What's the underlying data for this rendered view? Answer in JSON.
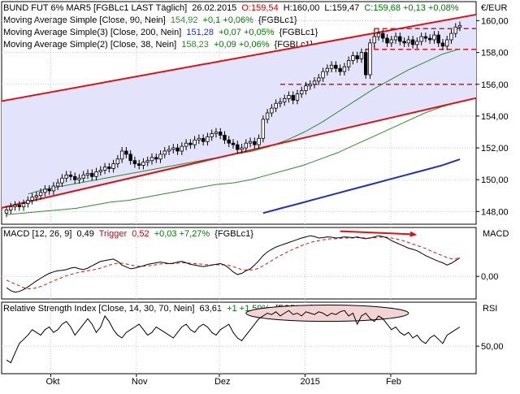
{
  "chart_data": {
    "type": "candlestick",
    "time_range": [
      "2014-09-15",
      "2015-02-26"
    ],
    "x_ticks": [
      {
        "label": "Okt",
        "date": "2014-10-01"
      },
      {
        "label": "Nov",
        "date": "2014-11-01"
      },
      {
        "label": "Dez",
        "date": "2014-12-01"
      },
      {
        "label": "2015",
        "date": "2015-01-01"
      },
      {
        "label": "Feb",
        "date": "2015-02-01"
      }
    ],
    "price_panel": {
      "header": {
        "instrument": "BUND FUT 6% MAR5 [FGBLc1 LAST Täglich]",
        "date": "26.02.2015",
        "open": "O:159,54",
        "high": "H:160,00",
        "low": "L:159,47",
        "close_change": "C:159,68 +0,13 +0,08%"
      },
      "axis_unit": "€/EUR",
      "y_ticks": [
        "160,00",
        "158,00",
        "156,00",
        "154,00",
        "152,00",
        "150,00",
        "148,00"
      ],
      "ylim": [
        147.2,
        161.2
      ],
      "legend": [
        {
          "label": "Moving Average Simple [Close, 90, Nein]",
          "value": "154,92",
          "change": "+0,1 +0,06%",
          "ric": "{FGBLc1}",
          "color": "#2f8a2f"
        },
        {
          "label": "Moving Average Simple(3) [Close, 200, Nein]",
          "value": "151,28",
          "change": "+0,07 +0,05%",
          "ric": "{FGBLc1}",
          "color": "#1f2fbf"
        },
        {
          "label": "Moving Average Simple(2) [Close, 38, Nein]",
          "value": "158,23",
          "change": "+0,09 +0,06%",
          "ric": "{FGBLc1}",
          "color": "#2f8a2f"
        }
      ],
      "closes": [
        148.1,
        148.3,
        148.4,
        148.3,
        148.5,
        148.7,
        148.9,
        149.0,
        149.2,
        149.4,
        149.3,
        149.6,
        149.8,
        150.1,
        150.3,
        150.2,
        150.0,
        150.1,
        150.3,
        150.4,
        150.2,
        150.5,
        150.6,
        150.8,
        150.7,
        151.0,
        151.3,
        151.8,
        151.6,
        151.2,
        151.0,
        150.9,
        151.1,
        151.2,
        151.4,
        151.3,
        151.6,
        151.8,
        151.9,
        152.0,
        151.8,
        152.1,
        152.3,
        152.2,
        152.5,
        152.6,
        152.4,
        152.7,
        152.9,
        153.0,
        152.8,
        152.5,
        152.3,
        152.2,
        151.9,
        152.0,
        152.3,
        152.4,
        152.2,
        152.6,
        153.8,
        154.2,
        154.5,
        154.8,
        154.9,
        155.1,
        155.3,
        155.0,
        155.4,
        155.6,
        155.9,
        156.0,
        156.2,
        156.4,
        156.8,
        157.0,
        157.2,
        157.0,
        156.8,
        157.1,
        157.5,
        157.8,
        157.6,
        158.0,
        156.6,
        158.6,
        159.0,
        159.2,
        158.9,
        158.6,
        158.8,
        159.0,
        158.7,
        158.6,
        158.8,
        158.5,
        158.7,
        159.0,
        158.9,
        158.8,
        159.1,
        158.6,
        158.4,
        158.8,
        159.2,
        159.6,
        159.7
      ],
      "ma90": [
        147.8,
        147.9,
        148.0,
        148.1,
        148.2,
        148.4,
        148.6,
        148.7,
        148.9,
        149.1,
        149.3,
        149.5,
        149.7,
        149.8,
        150.0,
        150.3,
        150.6,
        150.9,
        151.3,
        151.7,
        152.2,
        152.7,
        153.2,
        153.7,
        154.2,
        154.6,
        154.92
      ],
      "ma200_start_index": 60,
      "ma200": [
        147.9,
        148.2,
        148.5,
        148.8,
        149.1,
        149.4,
        149.7,
        150.0,
        150.3,
        150.6,
        150.9,
        151.28
      ],
      "ma38_start_index": 5,
      "ma38": [
        149.1,
        149.4,
        149.6,
        149.8,
        150.0,
        150.2,
        150.4,
        150.6,
        150.8,
        151.0,
        151.2,
        151.4,
        151.6,
        151.8,
        152.1,
        152.5,
        153.0,
        153.6,
        154.3,
        155.0,
        155.7,
        156.3,
        156.9,
        157.4,
        157.9,
        158.23
      ],
      "channel_upper": [
        [
          0,
          155.0
        ],
        [
          106,
          160.2
        ]
      ],
      "channel_lower": [
        [
          0,
          148.3
        ],
        [
          106,
          154.9
        ]
      ],
      "horizontal_levels": [
        159.5,
        158.2,
        156.0
      ]
    },
    "macd_panel": {
      "header": {
        "label": "MACD [12, 26, 9]",
        "value": "0,49",
        "trigger_label": "Trigger",
        "trigger_value": "0,52",
        "change": "+0,03 +7,27%",
        "ric": "{FGBLc1}"
      },
      "axis_label": "MACD",
      "y_ticks": [
        "0,00"
      ],
      "ylim": [
        -0.6,
        1.3
      ],
      "macd": [
        -0.3,
        -0.38,
        -0.42,
        -0.4,
        -0.35,
        -0.28,
        -0.2,
        -0.12,
        -0.05,
        0.02,
        0.08,
        0.12,
        0.15,
        0.16,
        0.18,
        0.22,
        0.24,
        0.2,
        0.18,
        0.22,
        0.28,
        0.34,
        0.4,
        0.42,
        0.44,
        0.46,
        0.4,
        0.3,
        0.25,
        0.2,
        0.22,
        0.25,
        0.28,
        0.32,
        0.34,
        0.36,
        0.38,
        0.36,
        0.34,
        0.35,
        0.38,
        0.4,
        0.36,
        0.32,
        0.3,
        0.28,
        0.26,
        0.28,
        0.3,
        0.32,
        0.34,
        0.3,
        0.22,
        0.12,
        0.05,
        0.08,
        0.15,
        0.2,
        0.3,
        0.42,
        0.55,
        0.65,
        0.72,
        0.78,
        0.82,
        0.86,
        0.9,
        0.94,
        0.98,
        1.02,
        1.05,
        1.08,
        1.06,
        1.02,
        1.03,
        1.05,
        1.04,
        1.02,
        1.03,
        1.05,
        1.04,
        1.03,
        1.05,
        1.02,
        1.0,
        1.02,
        1.05,
        1.08,
        1.06,
        1.02,
        0.95,
        0.9,
        0.85,
        0.8,
        0.75,
        0.72,
        0.68,
        0.62,
        0.55,
        0.5,
        0.45,
        0.4,
        0.36,
        0.3,
        0.35,
        0.42,
        0.49
      ],
      "trigger": [
        -0.1,
        -0.15,
        -0.2,
        -0.25,
        -0.3,
        -0.33,
        -0.33,
        -0.3,
        -0.27,
        -0.22,
        -0.17,
        -0.12,
        -0.07,
        -0.03,
        0.02,
        0.05,
        0.08,
        0.11,
        0.13,
        0.15,
        0.17,
        0.19,
        0.22,
        0.26,
        0.3,
        0.33,
        0.35,
        0.35,
        0.33,
        0.3,
        0.28,
        0.27,
        0.27,
        0.28,
        0.29,
        0.31,
        0.33,
        0.34,
        0.34,
        0.34,
        0.35,
        0.36,
        0.36,
        0.35,
        0.34,
        0.33,
        0.32,
        0.31,
        0.3,
        0.31,
        0.31,
        0.3,
        0.29,
        0.26,
        0.22,
        0.18,
        0.17,
        0.17,
        0.18,
        0.22,
        0.28,
        0.35,
        0.42,
        0.49,
        0.55,
        0.61,
        0.67,
        0.72,
        0.77,
        0.82,
        0.86,
        0.9,
        0.93,
        0.95,
        0.97,
        0.99,
        1.0,
        1.0,
        1.01,
        1.02,
        1.02,
        1.02,
        1.03,
        1.03,
        1.02,
        1.02,
        1.03,
        1.04,
        1.04,
        1.04,
        1.02,
        1.0,
        0.97,
        0.94,
        0.9,
        0.86,
        0.82,
        0.78,
        0.74,
        0.69,
        0.64,
        0.59,
        0.55,
        0.5,
        0.47,
        0.46,
        0.52
      ]
    },
    "rsi_panel": {
      "header": {
        "label": "Relative Strength Index [Close, 14, 30, 70, Nein]",
        "value": "63,61",
        "change": "+1 +1,59%",
        "ric": "{FGBLc1}"
      },
      "axis_label": "RSI",
      "y_ticks": [
        "50,00"
      ],
      "ylim": [
        30,
        82
      ],
      "rsi": [
        40,
        38,
        45,
        52,
        55,
        58,
        62,
        60,
        58,
        62,
        64,
        60,
        62,
        66,
        68,
        64,
        58,
        62,
        66,
        70,
        66,
        60,
        64,
        72,
        68,
        62,
        58,
        56,
        60,
        62,
        64,
        66,
        62,
        58,
        60,
        64,
        62,
        60,
        58,
        56,
        60,
        64,
        66,
        62,
        60,
        64,
        66,
        64,
        60,
        58,
        62,
        64,
        66,
        60,
        56,
        54,
        58,
        62,
        66,
        70,
        72,
        74,
        73,
        75,
        72,
        74,
        76,
        73,
        74,
        72,
        75,
        74,
        73,
        75,
        74,
        72,
        74,
        73,
        75,
        76,
        72,
        74,
        66,
        72,
        74,
        70,
        68,
        72,
        70,
        66,
        62,
        64,
        60,
        58,
        60,
        56,
        58,
        54,
        52,
        56,
        58,
        55,
        52,
        58,
        60,
        62,
        64
      ]
    },
    "annotations": [
      {
        "type": "arrow",
        "panel": "macd",
        "from_index": 78,
        "to_index": 96,
        "color": "#e01010"
      },
      {
        "type": "ellipse",
        "panel": "rsi",
        "from_index": 56,
        "to_index": 94,
        "color": "#f3d3d3"
      }
    ]
  }
}
